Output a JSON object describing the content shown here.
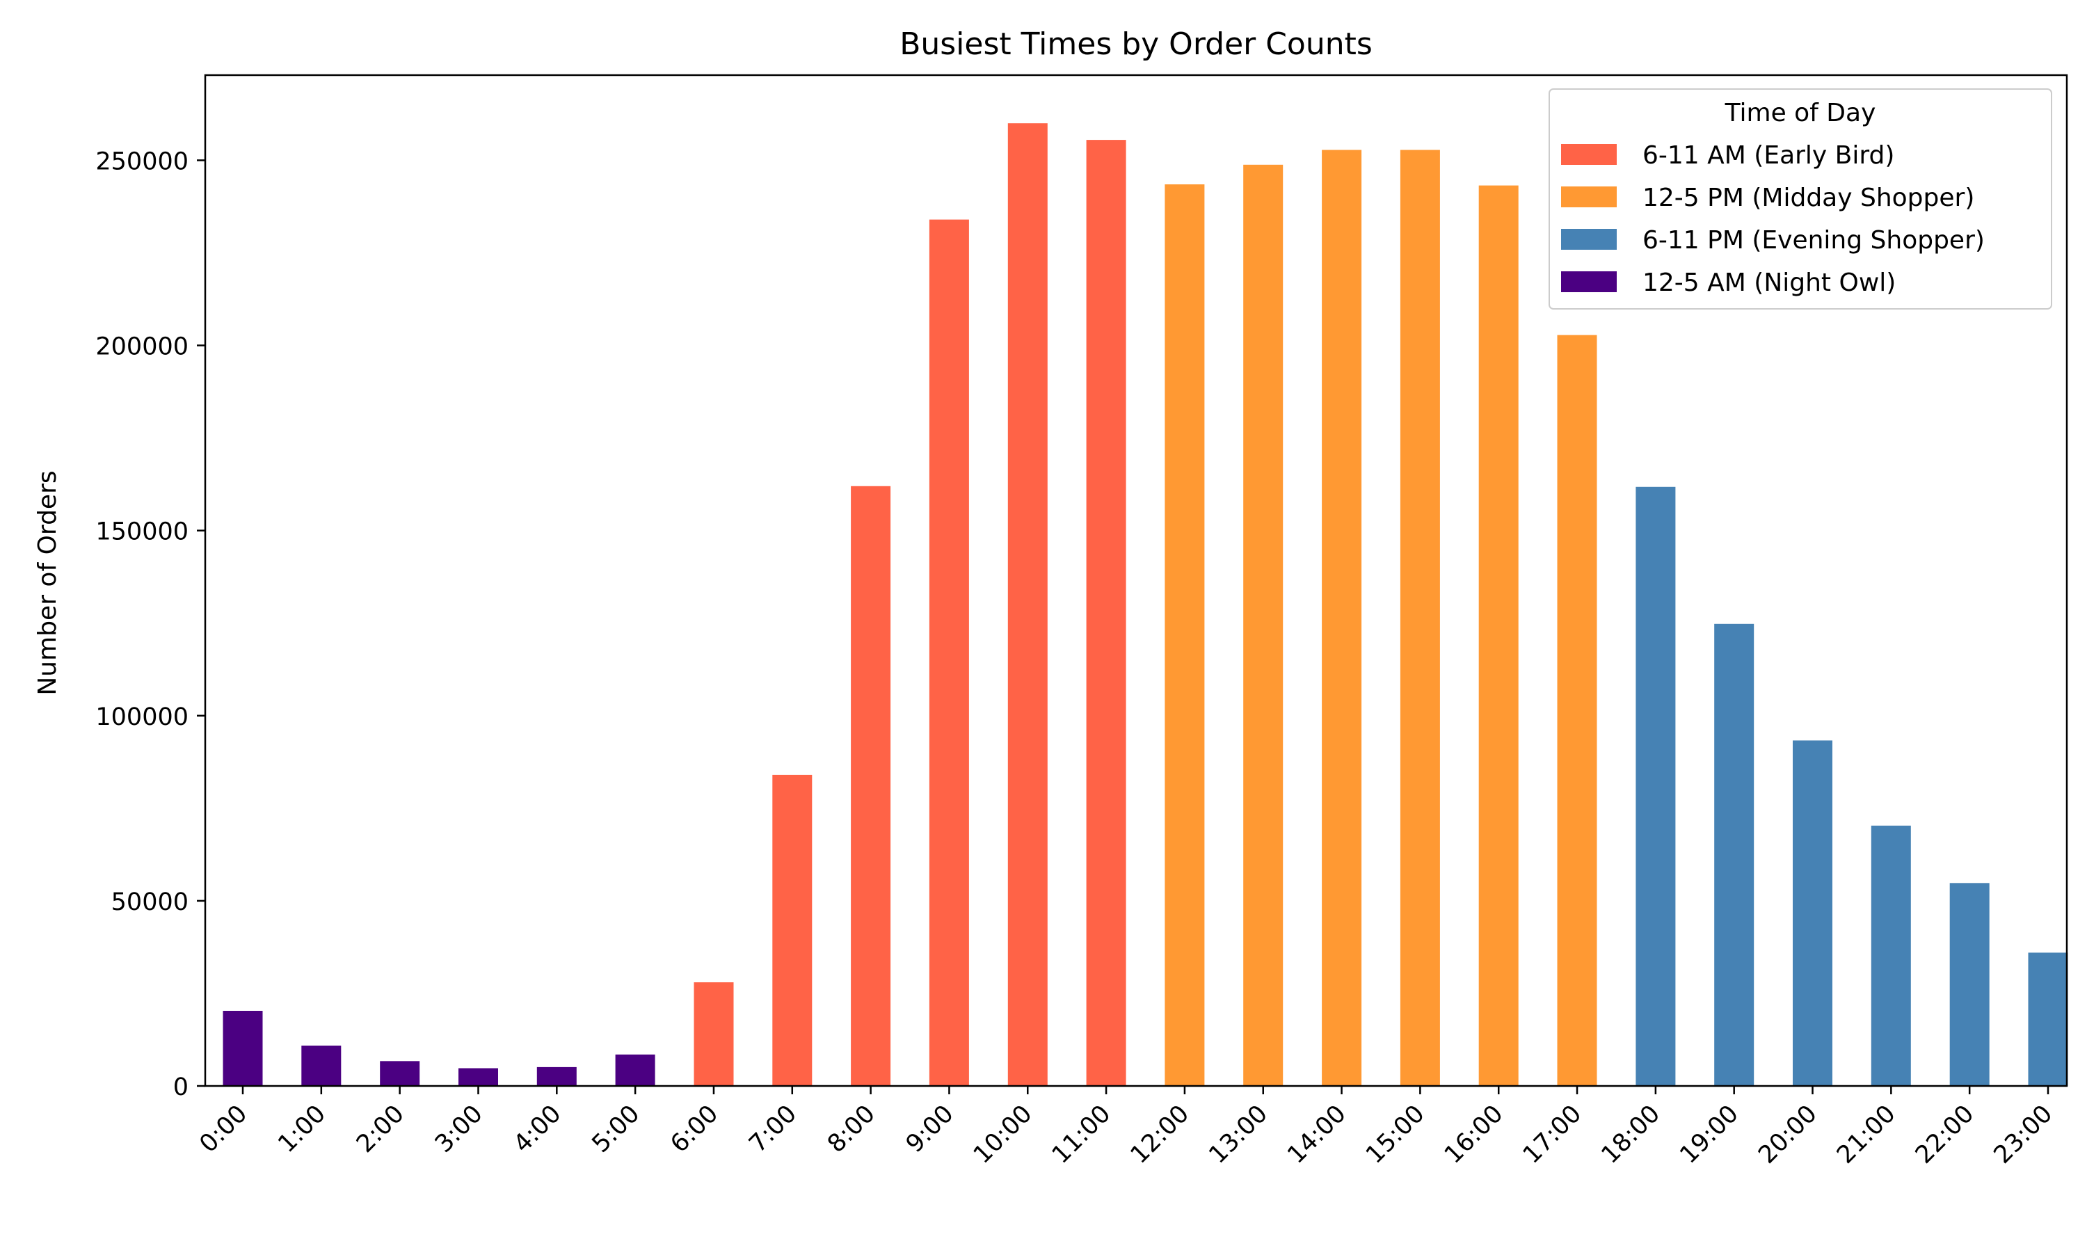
{
  "chart_data": {
    "type": "bar",
    "title": "Busiest Times by Order Counts",
    "xlabel": "",
    "ylabel": "Number of Orders",
    "ylim": [
      0,
      273000
    ],
    "yticks": [
      0,
      50000,
      100000,
      150000,
      200000,
      250000
    ],
    "ytick_labels": [
      "0",
      "50000",
      "100000",
      "150000",
      "200000",
      "250000"
    ],
    "categories": [
      "0:00",
      "1:00",
      "2:00",
      "3:00",
      "4:00",
      "5:00",
      "6:00",
      "7:00",
      "8:00",
      "9:00",
      "10:00",
      "11:00",
      "12:00",
      "13:00",
      "14:00",
      "15:00",
      "16:00",
      "17:00",
      "18:00",
      "19:00",
      "20:00",
      "21:00",
      "22:00",
      "23:00"
    ],
    "values": [
      20300,
      10900,
      6700,
      4800,
      5100,
      8500,
      28000,
      84000,
      162000,
      234000,
      260000,
      255500,
      243500,
      248800,
      252800,
      252800,
      243200,
      202800,
      161800,
      124800,
      93300,
      70300,
      54800,
      36000
    ],
    "groups": [
      0,
      0,
      0,
      0,
      0,
      0,
      1,
      1,
      1,
      1,
      1,
      1,
      2,
      2,
      2,
      2,
      2,
      2,
      3,
      3,
      3,
      3,
      3,
      3
    ],
    "grid": false,
    "legend": {
      "title": "Time of Day",
      "placement": "top-right",
      "entries": [
        {
          "label": "6-11 AM (Early Bird)",
          "color": "#ff6347"
        },
        {
          "label": "12-5 PM (Midday Shopper)",
          "color": "#ff9933"
        },
        {
          "label": "6-11 PM (Evening Shopper)",
          "color": "#4682b4"
        },
        {
          "label": "12-5 AM (Night Owl)",
          "color": "#4b0082"
        }
      ]
    },
    "group_colors": [
      "#4b0082",
      "#ff6347",
      "#ff9933",
      "#4682b4"
    ]
  }
}
